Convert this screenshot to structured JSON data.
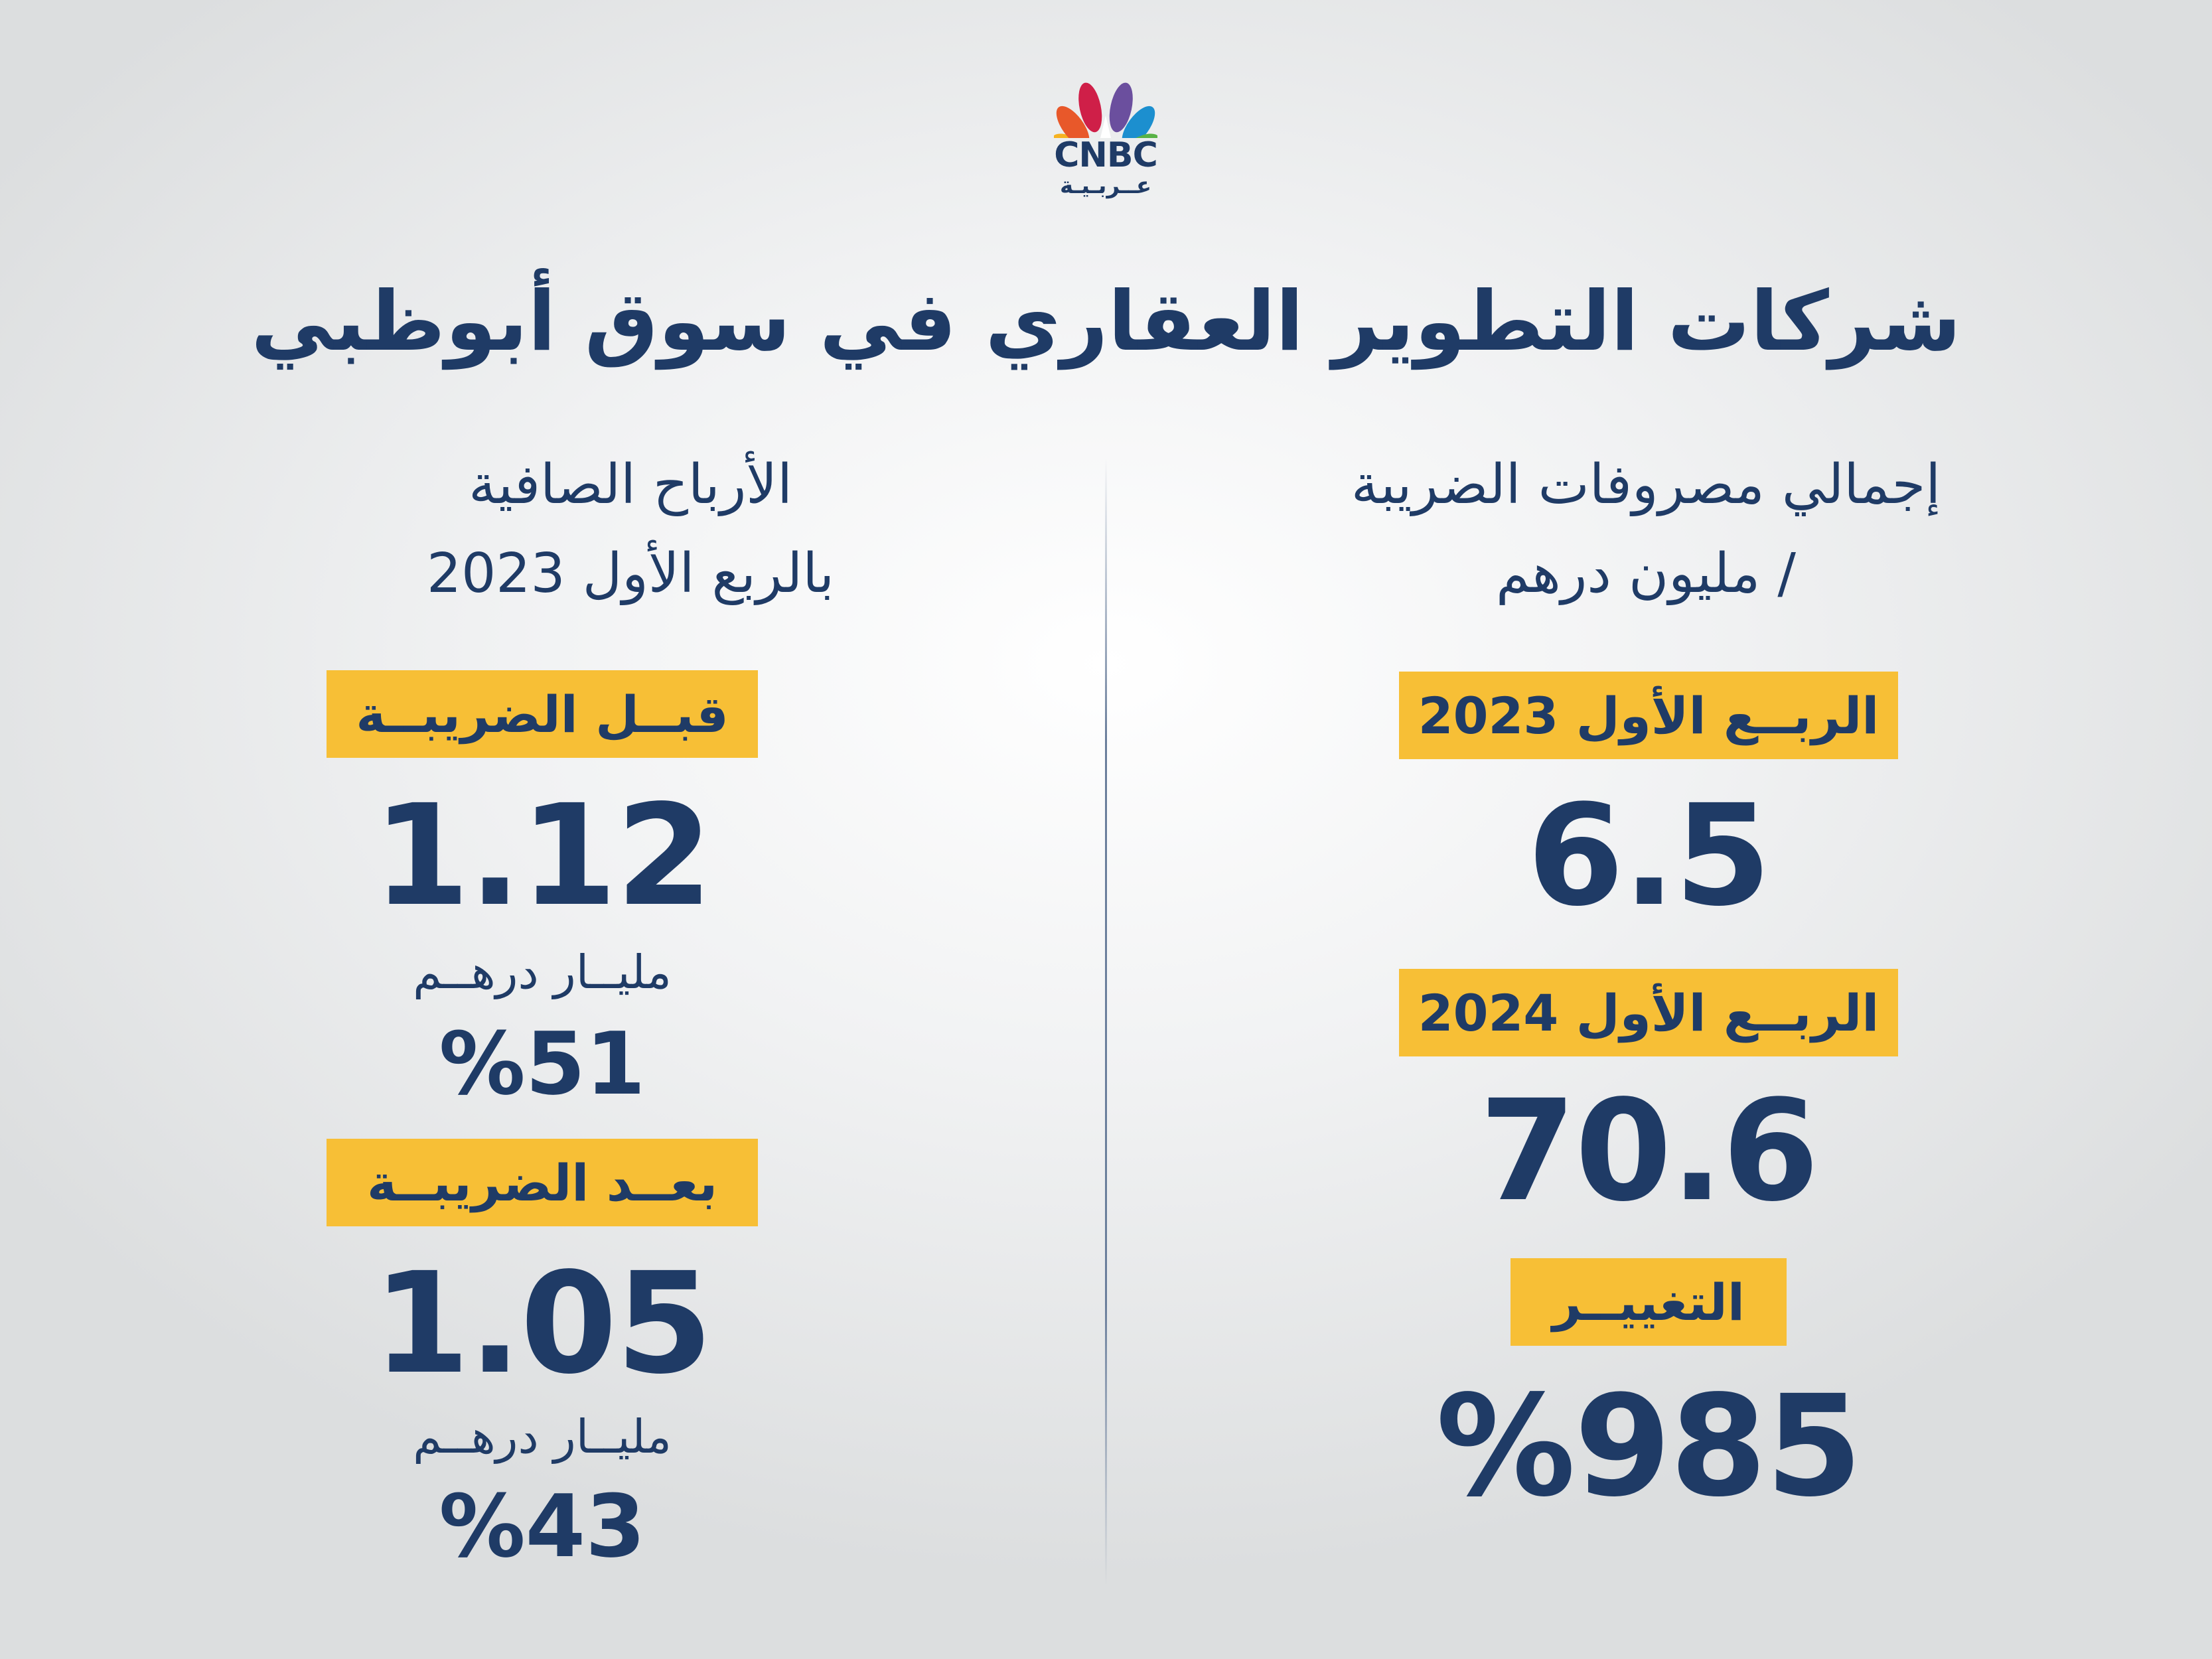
{
  "logo": {
    "brand": "CNBC",
    "brand_arabic": "عــربـيـة"
  },
  "title": "شركات التطوير العقاري في سوق أبوظبي",
  "tax_column": {
    "heading_line1": "إجمالي مصروفات الضريبة",
    "heading_line2": "/ مليون درهم",
    "q1_2023_label": "الربــع الأول 2023",
    "q1_2023_value": "6.5",
    "q1_2024_label": "الربــع الأول 2024",
    "q1_2024_value": "70.6",
    "change_label": "التغييــر",
    "change_value": "%985"
  },
  "profit_column": {
    "heading_line1": "الأرباح الصافية",
    "heading_line2": "بالربع الأول 2023",
    "before_tax_label": "قبــل الضريبــة",
    "before_tax_value": "1.12",
    "before_tax_unit": "مليــار درهــم",
    "before_tax_pct": "%51",
    "after_tax_label": "بعــد الضريبــة",
    "after_tax_value": "1.05",
    "after_tax_unit": "مليــار درهــم",
    "after_tax_pct": "%43"
  },
  "colors": {
    "navy": "#1f3b66",
    "highlight": "#f7bf36"
  },
  "icons": {
    "logo_mark": "peacock-icon"
  }
}
